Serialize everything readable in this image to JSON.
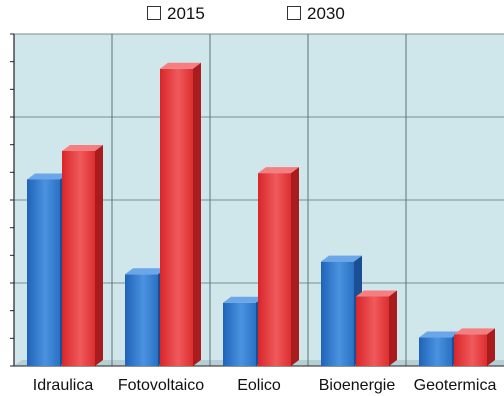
{
  "chart_data": {
    "type": "bar",
    "categories": [
      "Idraulica",
      "Fotovoltaico",
      "Eolico",
      "Bioenergie",
      "Geotermica"
    ],
    "series": [
      {
        "name": "2015",
        "values": [
          5.9,
          2.9,
          2.0,
          3.3,
          0.9
        ]
      },
      {
        "name": "2030",
        "values": [
          6.8,
          9.4,
          6.1,
          2.2,
          1.0
        ]
      }
    ],
    "ylim": [
      0,
      10.5
    ],
    "grid": true,
    "legend": "top"
  },
  "colors": {
    "series_2015": "#3a7fd0",
    "series_2030": "#e8383a",
    "plot_bg": "#cfe6ea"
  }
}
